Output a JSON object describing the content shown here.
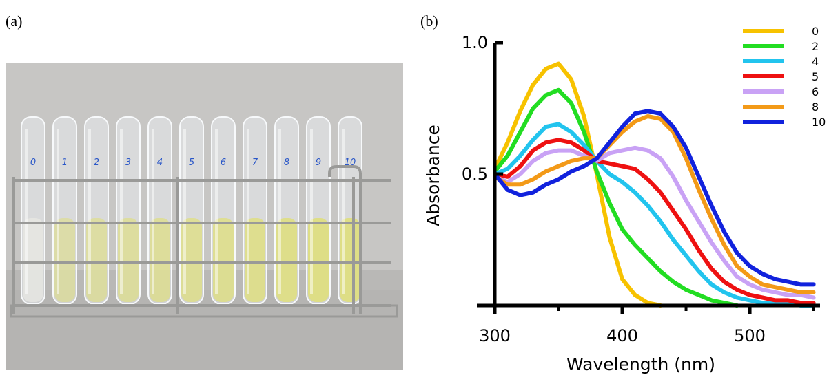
{
  "panels": {
    "a_label": "(a)",
    "b_label": "(b)"
  },
  "photo": {
    "tube_labels": [
      "0",
      "1",
      "2",
      "3",
      "4",
      "5",
      "6",
      "7",
      "8",
      "9",
      "10"
    ],
    "colors": {
      "background": "#b9b8b6",
      "liquid": "#dede86",
      "liquid_clear": "#e6e6e2",
      "rack": "#9a9a98",
      "label_ink": "#2a57c8"
    }
  },
  "chart_data": {
    "type": "line",
    "title": "",
    "xlabel": "Wavelength (nm)",
    "ylabel": "Absorbance",
    "xlim": [
      300,
      550
    ],
    "ylim": [
      0,
      1.0
    ],
    "x_ticks": [
      300,
      400,
      500
    ],
    "x_tick_labels": [
      "300",
      "400",
      "500"
    ],
    "y_ticks": [
      0.5,
      1.0
    ],
    "y_tick_labels": [
      "0.5",
      "1.0"
    ],
    "grid": false,
    "legend_position": "top-right",
    "x": [
      300,
      310,
      320,
      330,
      340,
      350,
      360,
      370,
      380,
      390,
      400,
      410,
      420,
      430,
      440,
      450,
      460,
      470,
      480,
      490,
      500,
      510,
      520,
      530,
      540,
      550
    ],
    "series": [
      {
        "name": "0",
        "color": "#f7c200",
        "values": [
          0.52,
          0.62,
          0.74,
          0.84,
          0.9,
          0.92,
          0.86,
          0.72,
          0.5,
          0.26,
          0.1,
          0.04,
          0.01,
          0.0,
          null,
          null,
          null,
          null,
          null,
          null,
          null,
          null,
          null,
          null,
          null,
          null
        ]
      },
      {
        "name": "2",
        "color": "#22dd22",
        "values": [
          0.51,
          0.57,
          0.66,
          0.75,
          0.8,
          0.82,
          0.77,
          0.66,
          0.51,
          0.39,
          0.29,
          0.23,
          0.18,
          0.13,
          0.09,
          0.06,
          0.04,
          0.02,
          0.01,
          0.0,
          null,
          null,
          null,
          null,
          null,
          null
        ]
      },
      {
        "name": "4",
        "color": "#22c4ee",
        "values": [
          0.5,
          0.52,
          0.57,
          0.63,
          0.68,
          0.69,
          0.66,
          0.61,
          0.55,
          0.5,
          0.47,
          0.43,
          0.38,
          0.32,
          0.25,
          0.19,
          0.13,
          0.08,
          0.05,
          0.03,
          0.02,
          0.01,
          0.01,
          0.01,
          0.0,
          0.0
        ]
      },
      {
        "name": "5",
        "color": "#ee1111",
        "values": [
          0.5,
          0.49,
          0.53,
          0.59,
          0.62,
          0.63,
          0.62,
          0.59,
          0.55,
          0.54,
          0.53,
          0.52,
          0.48,
          0.43,
          0.36,
          0.29,
          0.21,
          0.14,
          0.09,
          0.06,
          0.04,
          0.03,
          0.02,
          0.02,
          0.01,
          0.01
        ]
      },
      {
        "name": "6",
        "color": "#c9a2f5",
        "values": [
          0.49,
          0.47,
          0.5,
          0.55,
          0.58,
          0.59,
          0.59,
          0.57,
          0.55,
          0.58,
          0.59,
          0.6,
          0.59,
          0.56,
          0.49,
          0.4,
          0.32,
          0.24,
          0.17,
          0.11,
          0.08,
          0.06,
          0.05,
          0.04,
          0.04,
          0.03
        ]
      },
      {
        "name": "8",
        "color": "#f39a18",
        "values": [
          0.49,
          0.46,
          0.46,
          0.48,
          0.51,
          0.53,
          0.55,
          0.56,
          0.56,
          0.61,
          0.66,
          0.7,
          0.72,
          0.71,
          0.66,
          0.56,
          0.44,
          0.33,
          0.23,
          0.15,
          0.11,
          0.08,
          0.07,
          0.06,
          0.05,
          0.05
        ]
      },
      {
        "name": "10",
        "color": "#1122dd",
        "values": [
          0.5,
          0.44,
          0.42,
          0.43,
          0.46,
          0.48,
          0.51,
          0.53,
          0.56,
          0.62,
          0.68,
          0.73,
          0.74,
          0.73,
          0.68,
          0.6,
          0.49,
          0.38,
          0.28,
          0.2,
          0.15,
          0.12,
          0.1,
          0.09,
          0.08,
          0.08
        ]
      }
    ]
  }
}
